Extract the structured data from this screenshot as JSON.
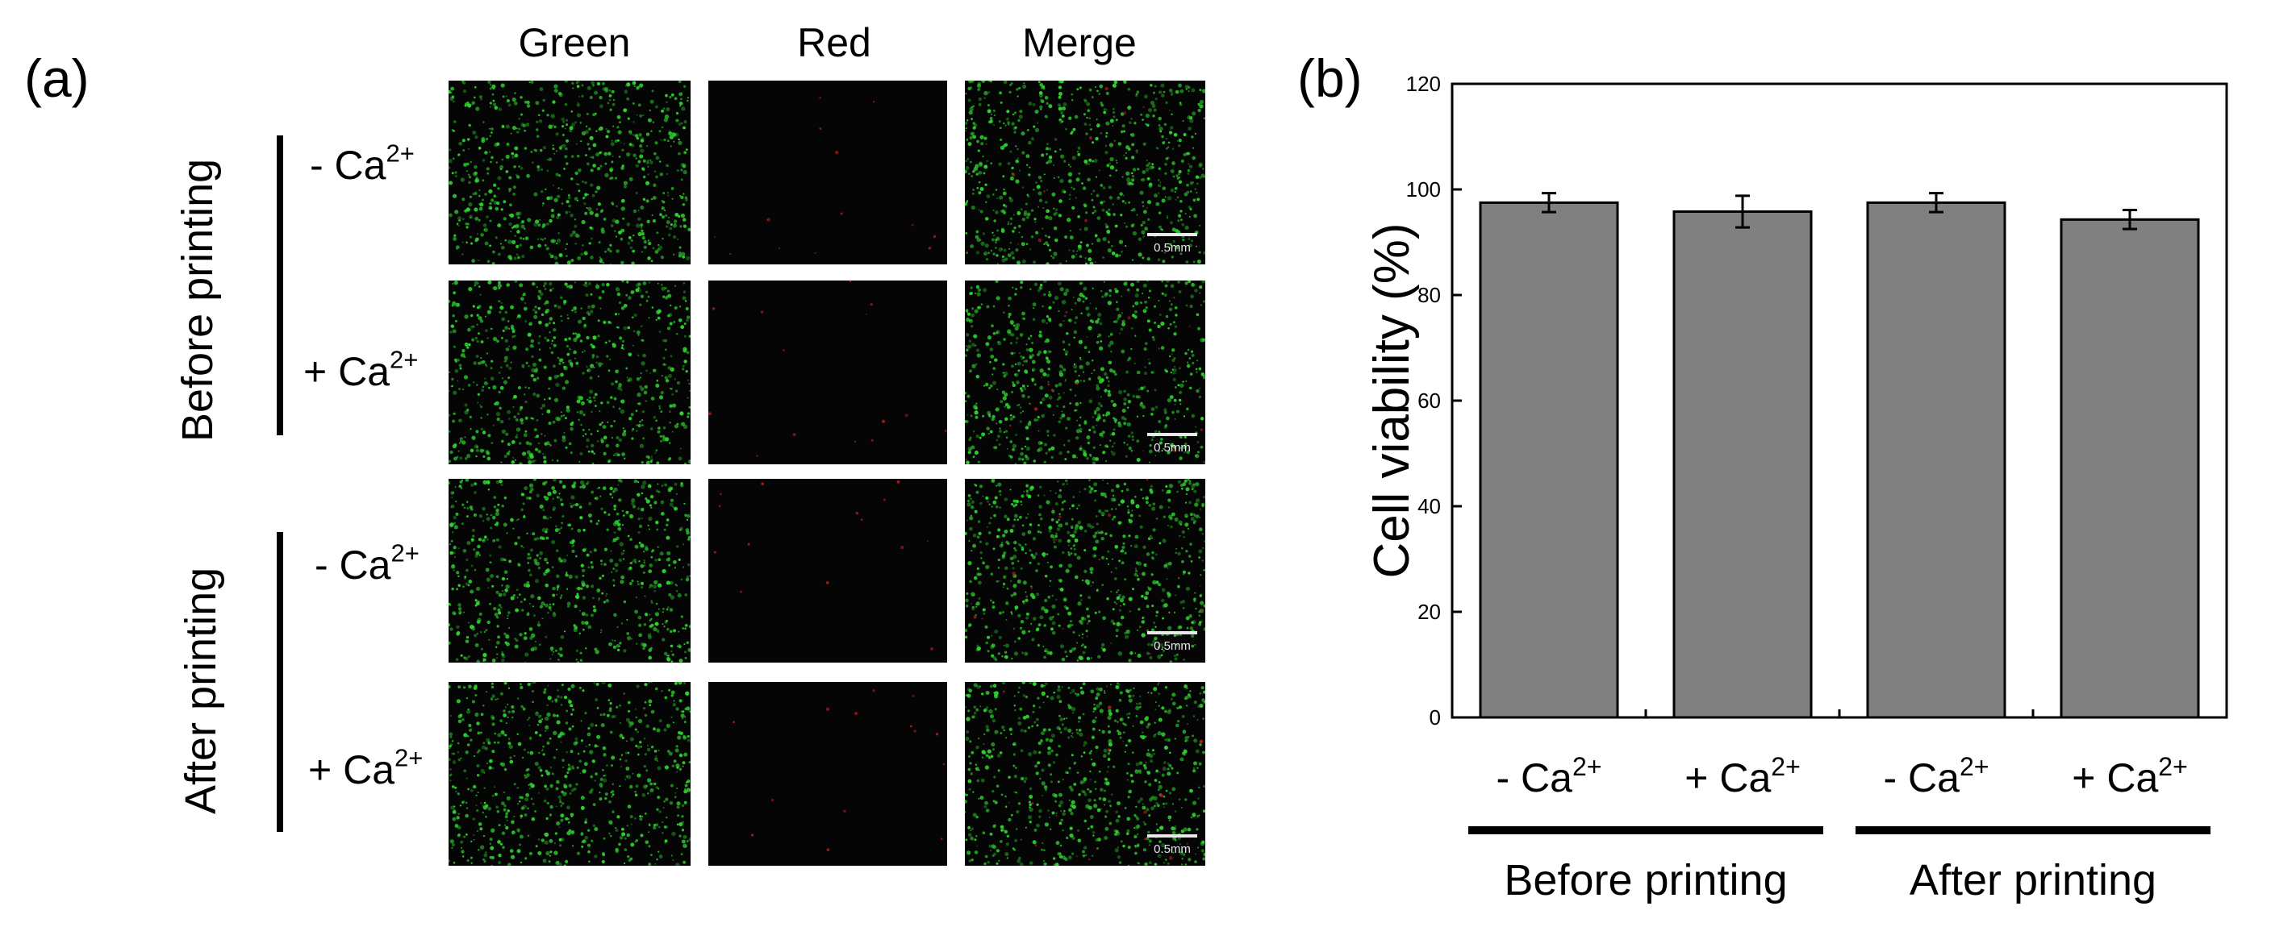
{
  "panel_a": {
    "label": "(a)",
    "column_headers": [
      "Green",
      "Red",
      "Merge"
    ],
    "groups": [
      {
        "name": "Before printing",
        "rows": [
          {
            "sign": "- Ca",
            "sup": "2+"
          },
          {
            "sign": "+ Ca",
            "sup": "2+"
          }
        ]
      },
      {
        "name": "After printing",
        "rows": [
          {
            "sign": "- Ca",
            "sup": "2+"
          },
          {
            "sign": "+ Ca",
            "sup": "2+"
          }
        ]
      }
    ],
    "scale_bar_label": "0.5mm",
    "colors": {
      "green_channel": "#2fd02f",
      "red_channel": "#b01a1a",
      "background": "#050505"
    }
  },
  "panel_b": {
    "label": "(b)"
  },
  "chart_data": {
    "type": "bar",
    "ylabel": "Cell viability (%)",
    "xlabel": "",
    "ylim": [
      0,
      120
    ],
    "yticks": [
      0,
      20,
      40,
      60,
      80,
      100,
      120
    ],
    "categories": [
      {
        "sign": "- Ca",
        "sup": "2+"
      },
      {
        "sign": "+ Ca",
        "sup": "2+"
      },
      {
        "sign": "- Ca",
        "sup": "2+"
      },
      {
        "sign": "+ Ca",
        "sup": "2+"
      }
    ],
    "values": [
      97.5,
      95.8,
      97.5,
      94.3
    ],
    "errors": [
      1.8,
      3.0,
      1.8,
      1.8
    ],
    "groups": [
      "Before printing",
      "After printing"
    ],
    "bar_color": "#808080",
    "grid": false
  }
}
